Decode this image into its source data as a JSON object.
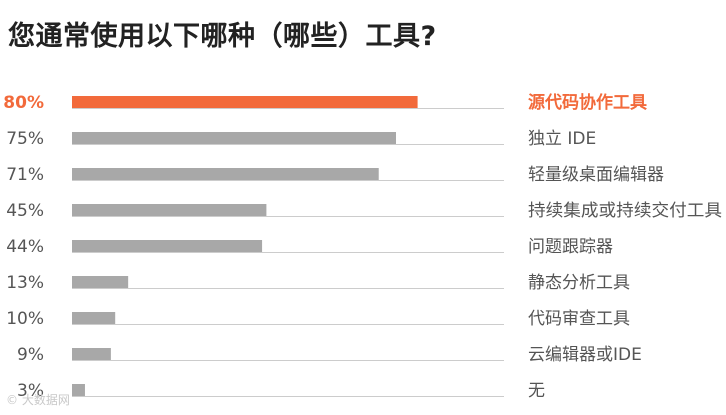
{
  "title": "您通常使用以下哪种（哪些）工具?",
  "watermark": "© 大数据网",
  "colors": {
    "highlight": "#f26a3b",
    "bar": "#a8a8a8",
    "track": "#cccccc",
    "text": "#555555"
  },
  "chart_data": {
    "type": "bar",
    "orientation": "horizontal",
    "title": "您通常使用以下哪种（哪些）工具?",
    "unit": "%",
    "xlim": [
      0,
      100
    ],
    "grid": false,
    "legend": "none",
    "highlight_index": 0,
    "categories": [
      "源代码协作工具",
      "独立 IDE",
      "轻量级桌面编辑器",
      "持续集成或持续交付工具",
      "问题跟踪器",
      "静态分析工具",
      "代码审查工具",
      "云编辑器或IDE",
      "无"
    ],
    "values": [
      80,
      75,
      71,
      45,
      44,
      13,
      10,
      9,
      3
    ],
    "value_labels": [
      "80%",
      "75%",
      "71%",
      "45%",
      "44%",
      "13%",
      "10%",
      "9%",
      "3%"
    ]
  }
}
